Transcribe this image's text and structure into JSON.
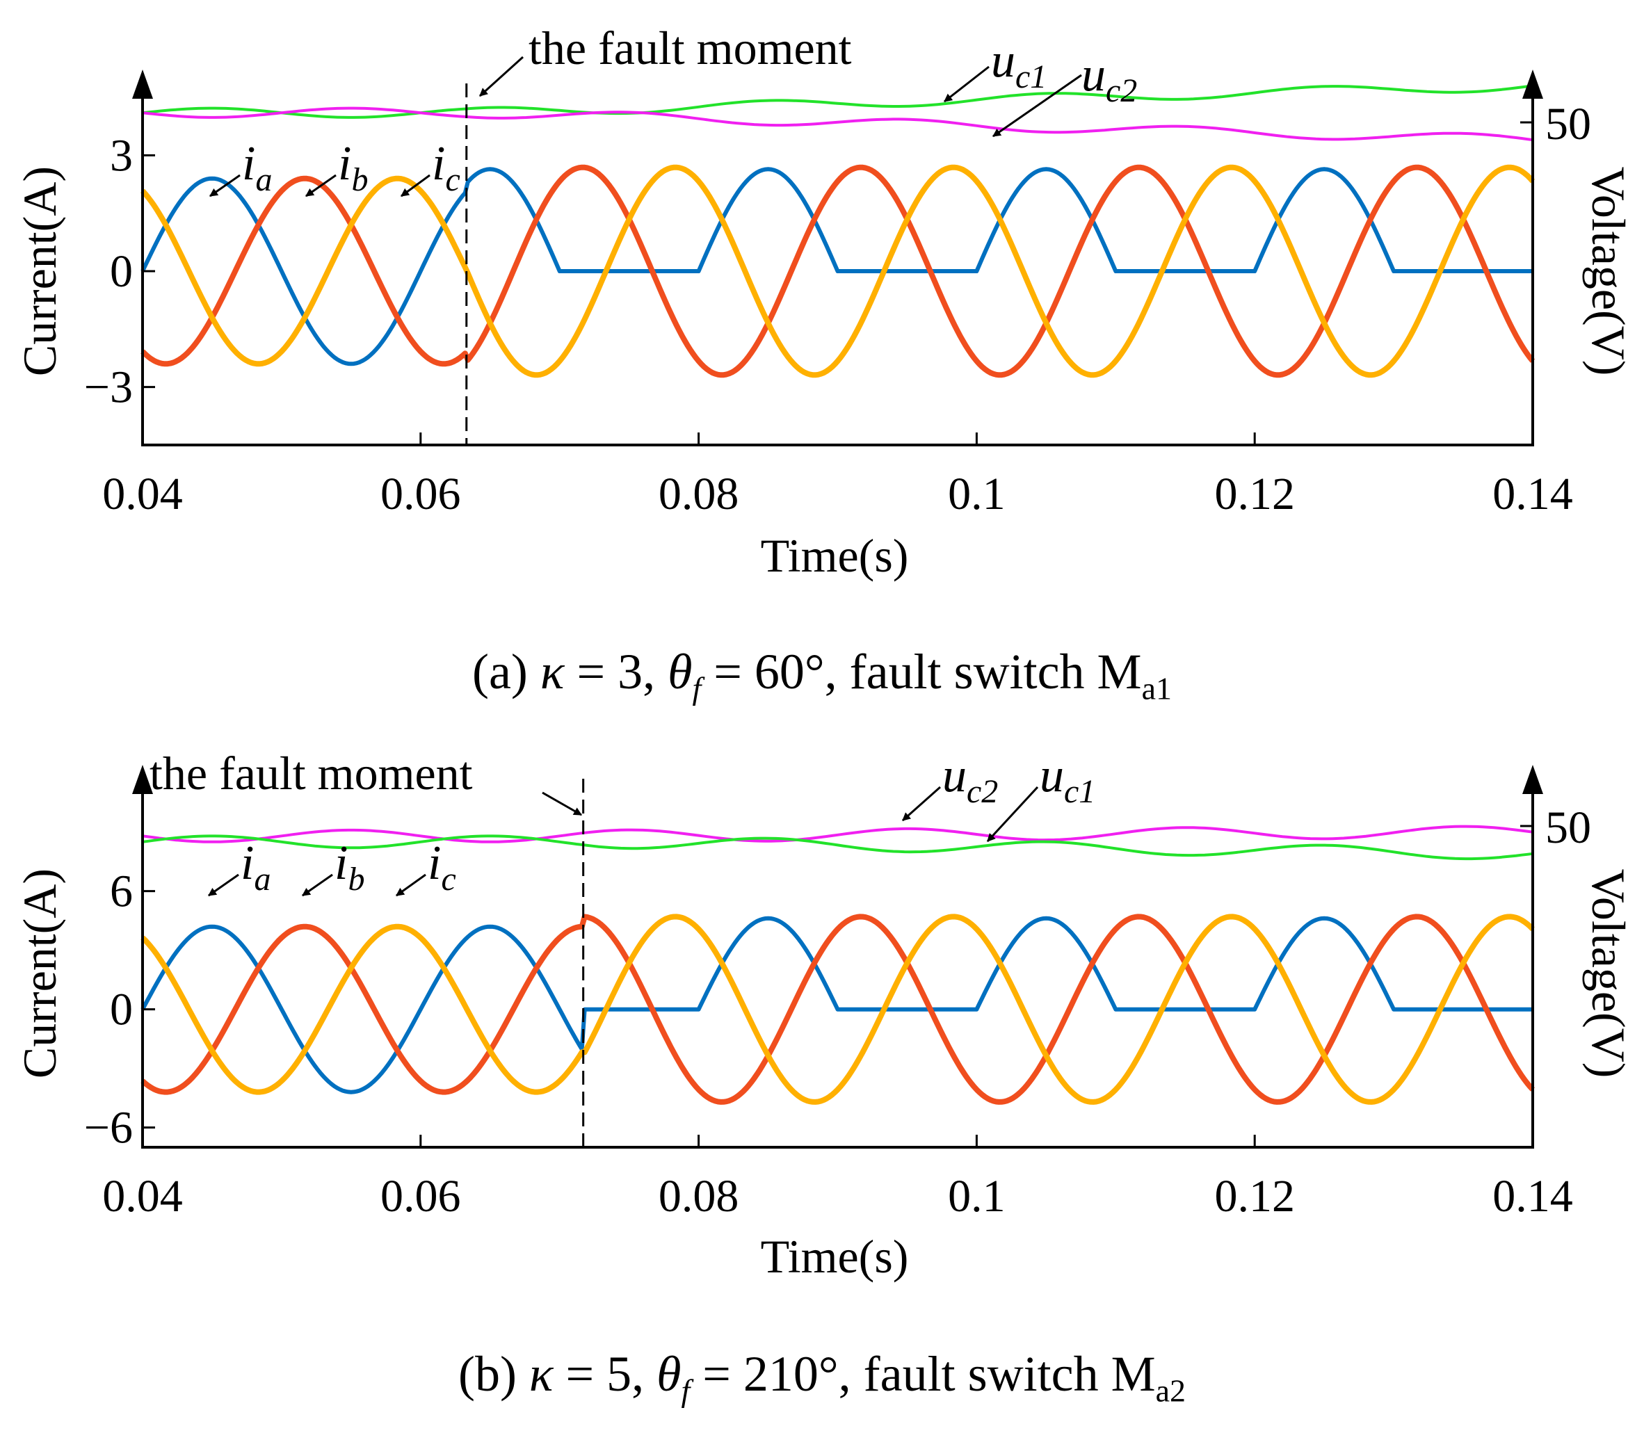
{
  "chart_data": [
    {
      "type": "line",
      "caption": {
        "prefix": "(a) ",
        "kappa_sym": "κ",
        "kappa_eq": " = 3, ",
        "theta_sym": "θ",
        "theta_sub": "f",
        "theta_eq": " = 60°, fault switch M",
        "switch_sub": "a1"
      },
      "xlabel": "Time(s)",
      "ylabel_left": "Current(A)",
      "ylabel_right": "Voltage(V)",
      "xlim": [
        0.04,
        0.14
      ],
      "ylim": [
        -4.5,
        4.5
      ],
      "x_ticks": [
        0.04,
        0.06,
        0.08,
        0.1,
        0.12,
        0.14
      ],
      "x_tick_labels": [
        "0.04",
        "0.06",
        "0.08",
        "0.1",
        "0.12",
        "0.14"
      ],
      "y_ticks_left": [
        3,
        0,
        -3
      ],
      "y_tick_labels_left": [
        "3",
        "0",
        "−3"
      ],
      "y_tick_right": "50",
      "fault_time": 0.0633,
      "fault_annotation": "the fault moment",
      "amplitude": 2.4,
      "series": [
        {
          "name": "i",
          "sub": "a",
          "color": "#0070C0",
          "phase_deg": 0
        },
        {
          "name": "i",
          "sub": "b",
          "color": "#F04E1E",
          "phase_deg": -120
        },
        {
          "name": "i",
          "sub": "c",
          "color": "#FFB000",
          "phase_deg": 120
        },
        {
          "name": "u",
          "sub": "c1",
          "color": "#22E22A"
        },
        {
          "name": "u",
          "sub": "c2",
          "color": "#F020F0"
        }
      ]
    },
    {
      "type": "line",
      "caption": {
        "prefix": "(b) ",
        "kappa_sym": "κ",
        "kappa_eq": " = 5, ",
        "theta_sym": "θ",
        "theta_sub": "f",
        "theta_eq": " = 210°, fault switch M",
        "switch_sub": "a2"
      },
      "xlabel": "Time(s)",
      "ylabel_left": "Current(A)",
      "ylabel_right": "Voltage(V)",
      "xlim": [
        0.04,
        0.14
      ],
      "ylim": [
        -7,
        11
      ],
      "x_ticks": [
        0.04,
        0.06,
        0.08,
        0.1,
        0.12,
        0.14
      ],
      "x_tick_labels": [
        "0.04",
        "0.06",
        "0.08",
        "0.1",
        "0.12",
        "0.14"
      ],
      "y_ticks_left": [
        6,
        0,
        -6
      ],
      "y_tick_labels_left": [
        "6",
        "0",
        "−6"
      ],
      "y_tick_right": "50",
      "fault_time": 0.0717,
      "fault_annotation": "the fault moment",
      "amplitude": 4.2,
      "series": [
        {
          "name": "i",
          "sub": "a",
          "color": "#0070C0",
          "phase_deg": 0
        },
        {
          "name": "i",
          "sub": "b",
          "color": "#F04E1E",
          "phase_deg": -120
        },
        {
          "name": "i",
          "sub": "c",
          "color": "#FFB000",
          "phase_deg": 120
        },
        {
          "name": "u",
          "sub": "c2",
          "color": "#F020F0"
        },
        {
          "name": "u",
          "sub": "c1",
          "color": "#22E22A"
        }
      ]
    }
  ]
}
